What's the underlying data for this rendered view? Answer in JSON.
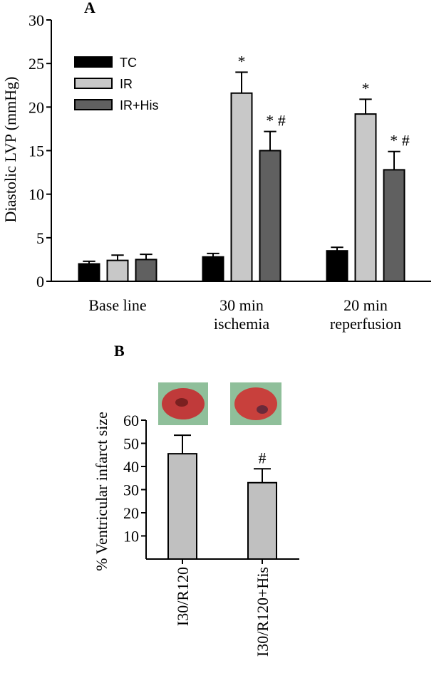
{
  "chart_data": [
    {
      "type": "bar",
      "title": "A",
      "ylabel": "Diastolic LVP (mmHg)",
      "categories": [
        "Base line",
        "30 min\nischemia",
        "20 min\nreperfusion"
      ],
      "series": [
        {
          "name": "TC",
          "color": "#000000",
          "values": [
            2.0,
            2.8,
            3.5
          ],
          "errors": [
            0.3,
            0.4,
            0.4
          ]
        },
        {
          "name": "IR",
          "color": "#c8c8c8",
          "values": [
            2.4,
            21.6,
            19.2
          ],
          "errors": [
            0.6,
            2.4,
            1.7
          ],
          "annotations": [
            null,
            "*",
            "*"
          ]
        },
        {
          "name": "IR+His",
          "color": "#606060",
          "values": [
            2.5,
            15.0,
            12.8
          ],
          "errors": [
            0.6,
            2.2,
            2.1
          ],
          "annotations": [
            null,
            "* #",
            "* #"
          ]
        }
      ],
      "ylim": [
        0,
        30
      ],
      "yticks": [
        0,
        5,
        10,
        15,
        20,
        25,
        30
      ],
      "legend": "upper left"
    },
    {
      "type": "bar",
      "title": "B",
      "ylabel": "% Ventricular infarct size",
      "categories": [
        "I30/R120",
        "I30/R120+His"
      ],
      "values": [
        45.5,
        33.0
      ],
      "errors": [
        8.0,
        6.0
      ],
      "annotations": [
        null,
        "#"
      ],
      "color": "#c0c0c0",
      "ylim": [
        0,
        60
      ],
      "yticks": [
        10,
        20,
        30,
        40,
        50,
        60
      ]
    }
  ]
}
